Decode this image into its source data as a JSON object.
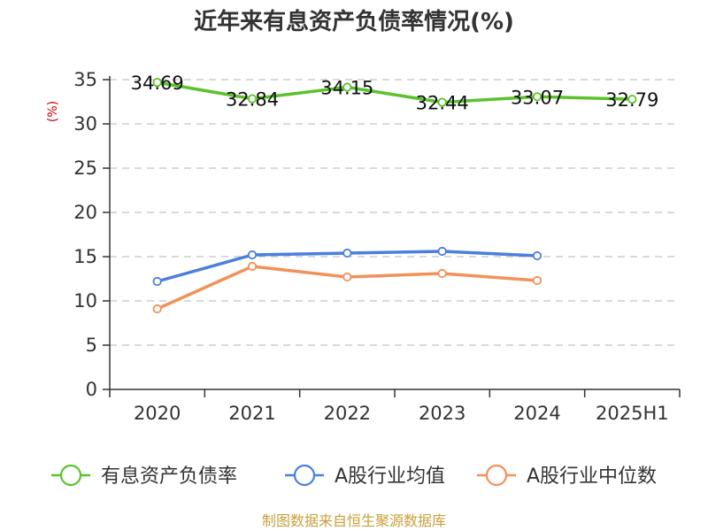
{
  "chart_data": {
    "type": "line",
    "title": "近年来有息资产负债率情况(%)",
    "ylabel": "(%)",
    "xlabel": "",
    "categories": [
      "2020",
      "2021",
      "2022",
      "2023",
      "2024",
      "2025H1"
    ],
    "ylim": [
      0,
      35
    ],
    "yticks": [
      0,
      5,
      10,
      15,
      20,
      25,
      30,
      35
    ],
    "grid": "horizontal-dashed",
    "legend_position": "bottom",
    "series": [
      {
        "name": "有息资产负债率",
        "color": "#5cc22a",
        "values": [
          34.69,
          32.84,
          34.15,
          32.44,
          33.07,
          32.79
        ],
        "labels": [
          "34.69",
          "32.84",
          "34.15",
          "32.44",
          "33.07",
          "32.79"
        ]
      },
      {
        "name": "A股行业均值",
        "color": "#4a7fdc",
        "values": [
          12.2,
          15.2,
          15.4,
          15.6,
          15.1,
          null
        ]
      },
      {
        "name": "A股行业中位数",
        "color": "#f29159",
        "values": [
          9.1,
          13.9,
          12.7,
          13.1,
          12.3,
          null
        ]
      }
    ],
    "source": "制图数据来自恒生聚源数据库"
  }
}
